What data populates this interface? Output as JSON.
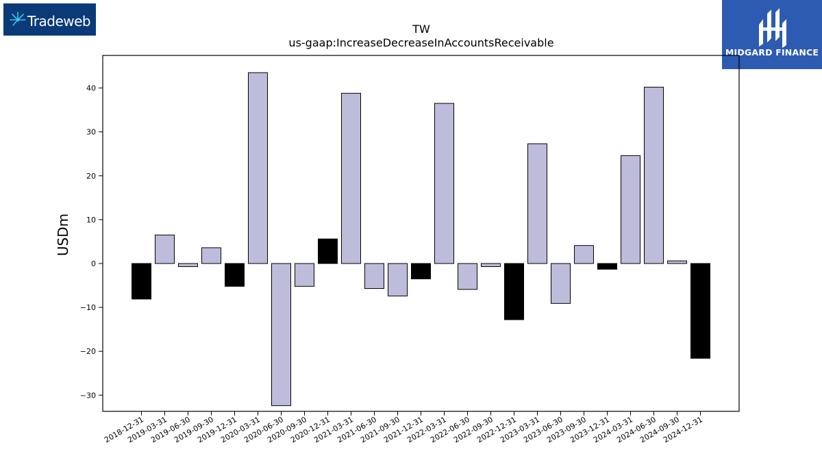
{
  "logos": {
    "left": {
      "text": "Tradeweb",
      "color": "#0a3a78"
    },
    "right": {
      "text": "MIDGARD FINANCE",
      "color": "#2d5bb1"
    }
  },
  "chart_data": {
    "type": "bar",
    "title": "TW",
    "subtitle": "us-gaap:IncreaseDecreaseInAccountsReceivable",
    "xlabel": "",
    "ylabel": "USDm",
    "ylim": [
      -33.5,
      47
    ],
    "yticks": [
      -30,
      -20,
      -10,
      0,
      10,
      20,
      30,
      40
    ],
    "ytick_labels": [
      "−30",
      "−20",
      "−10",
      "0",
      "10",
      "20",
      "30",
      "40"
    ],
    "grid": false,
    "legend": "none",
    "colors": {
      "q4": "#000000",
      "other": "#bebcdb",
      "edge": "#000000"
    },
    "categories": [
      "2018-12-31",
      "2019-03-31",
      "2019-06-30",
      "2019-09-30",
      "2019-12-31",
      "2020-03-31",
      "2020-06-30",
      "2020-09-30",
      "2020-12-31",
      "2021-03-31",
      "2021-06-30",
      "2021-09-30",
      "2021-12-31",
      "2022-03-31",
      "2022-06-30",
      "2022-09-30",
      "2022-12-31",
      "2023-03-31",
      "2023-06-30",
      "2023-09-30",
      "2023-12-31",
      "2024-03-31",
      "2024-06-30",
      "2024-09-30",
      "2024-12-31"
    ],
    "values": [
      -8.1,
      6.5,
      -0.7,
      3.6,
      -5.2,
      43.5,
      -32.4,
      -5.2,
      5.6,
      38.8,
      -5.7,
      -7.4,
      -3.5,
      36.5,
      -5.9,
      -0.7,
      -12.8,
      27.3,
      -9.1,
      4.1,
      -1.3,
      24.6,
      40.2,
      0.6,
      -21.6
    ]
  }
}
